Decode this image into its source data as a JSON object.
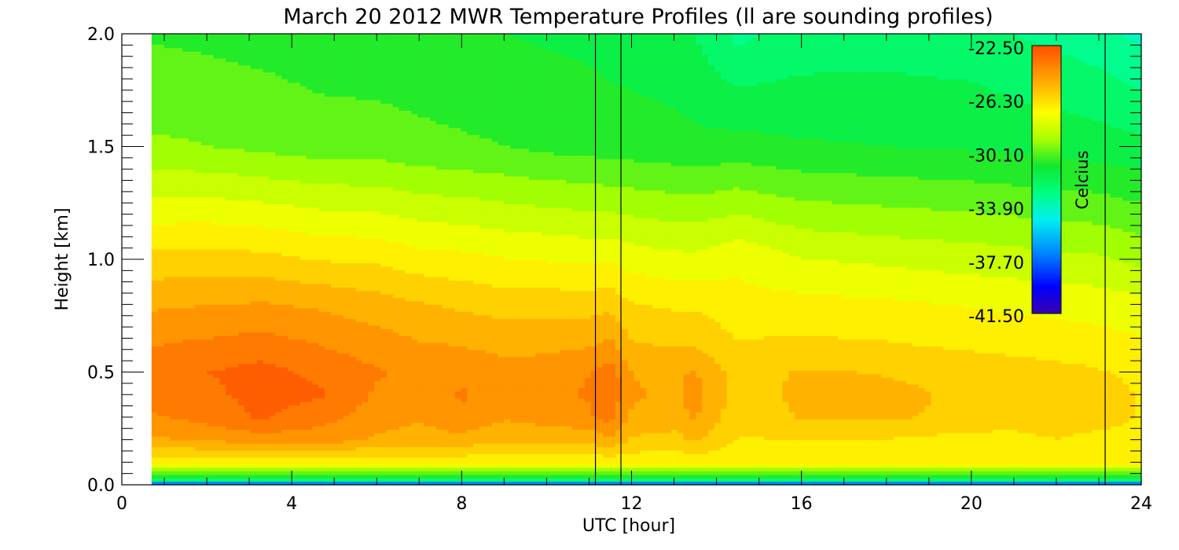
{
  "chart_data": {
    "type": "heatmap",
    "title": "March 20 2012 MWR Temperature Profiles (ll are sounding profiles)",
    "xlabel": "UTC [hour]",
    "ylabel": "Height [km]",
    "xlim": [
      0,
      24
    ],
    "ylim": [
      0,
      2
    ],
    "x_ticks": [
      "0",
      "4",
      "8",
      "12",
      "16",
      "20",
      "24"
    ],
    "x_tick_values": [
      0,
      4,
      8,
      12,
      16,
      20,
      24
    ],
    "y_ticks": [
      "0.0",
      "0.5",
      "1.0",
      "1.5",
      "2.0"
    ],
    "y_tick_values": [
      0,
      0.5,
      1.0,
      1.5,
      2.0
    ],
    "data_x_range": [
      0.7,
      24.0
    ],
    "sounding_times": [
      11.15,
      11.75,
      23.15
    ],
    "colorbar": {
      "label": "Celcius",
      "min": -41.5,
      "max": -22.5,
      "ticks": [
        "-22.50",
        "-26.30",
        "-30.10",
        "-33.90",
        "-37.70",
        "-41.50"
      ],
      "tick_values": [
        -22.5,
        -26.3,
        -30.1,
        -33.9,
        -37.7,
        -41.5
      ]
    },
    "x_samples": [
      0.7,
      2,
      3.3,
      4.7,
      6,
      7,
      8,
      9,
      10,
      11,
      11.5,
      12,
      13,
      13.5,
      14.5,
      16,
      18,
      20,
      21,
      22,
      23,
      24
    ],
    "y_samples": [
      0,
      0.02,
      0.05,
      0.1,
      0.2,
      0.3,
      0.4,
      0.5,
      0.6,
      0.8,
      1.0,
      1.5,
      2.0
    ],
    "temperature_grid": [
      [
        -40,
        -40,
        -40,
        -40,
        -40,
        -40,
        -40,
        -40,
        -40,
        -40,
        -40,
        -40,
        -40,
        -40,
        -40,
        -40,
        -40,
        -40,
        -40,
        -40,
        -40,
        -40
      ],
      [
        -33,
        -33,
        -33,
        -33,
        -33,
        -33,
        -33,
        -33,
        -33,
        -33,
        -33,
        -32.5,
        -32.5,
        -32.5,
        -32.5,
        -32.5,
        -32.5,
        -32.5,
        -32.5,
        -32.5,
        -32.5,
        -32.5
      ],
      [
        -30,
        -30,
        -30,
        -30,
        -30,
        -30,
        -30,
        -30,
        -30,
        -30,
        -30,
        -30,
        -30,
        -30,
        -30,
        -30,
        -30,
        -30,
        -30,
        -30,
        -30,
        -30
      ],
      [
        -27,
        -27,
        -27,
        -27,
        -27,
        -27,
        -27,
        -27,
        -27,
        -27,
        -27,
        -27,
        -27,
        -27,
        -27,
        -27,
        -27,
        -27,
        -27,
        -27,
        -27,
        -27
      ],
      [
        -25,
        -24.8,
        -24.5,
        -24.5,
        -25,
        -25.2,
        -25.2,
        -25.5,
        -25.5,
        -25.5,
        -25,
        -25.8,
        -26,
        -25.5,
        -26.5,
        -26.5,
        -26.5,
        -26.8,
        -26.8,
        -26.5,
        -26.8,
        -27
      ],
      [
        -24.2,
        -23.8,
        -23.2,
        -23.8,
        -24.5,
        -24.8,
        -24.2,
        -24.8,
        -24.5,
        -24.2,
        -23.8,
        -25,
        -25.2,
        -24.8,
        -26.2,
        -25.6,
        -25.6,
        -25.8,
        -26,
        -25.8,
        -26,
        -26.5
      ],
      [
        -23.8,
        -23.5,
        -23,
        -23.2,
        -24.2,
        -24.5,
        -24,
        -24.5,
        -24.3,
        -24,
        -23.5,
        -24.8,
        -25,
        -24.6,
        -26,
        -25.5,
        -25.5,
        -25.8,
        -26,
        -26,
        -26.2,
        -26.5
      ],
      [
        -23.6,
        -23.3,
        -23,
        -23.5,
        -24,
        -24.3,
        -24.2,
        -24.6,
        -24.4,
        -24.1,
        -23.6,
        -24.9,
        -25,
        -24.8,
        -26,
        -25.6,
        -25.7,
        -25.9,
        -26.1,
        -26.2,
        -26.4,
        -26.6
      ],
      [
        -24,
        -23.8,
        -23.6,
        -24,
        -24.4,
        -24.7,
        -24.8,
        -25,
        -25,
        -24.8,
        -24.5,
        -25.5,
        -25.6,
        -25.6,
        -26.3,
        -26.2,
        -26.3,
        -26.5,
        -26.6,
        -26.7,
        -26.8,
        -27
      ],
      [
        -25,
        -24.9,
        -24.8,
        -25,
        -25.3,
        -25.6,
        -25.8,
        -26,
        -26,
        -26,
        -25.9,
        -26.4,
        -26.6,
        -26.6,
        -27,
        -27,
        -27.1,
        -27.3,
        -27.4,
        -27.5,
        -27.6,
        -27.8
      ],
      [
        -26.2,
        -26.1,
        -26.2,
        -26.5,
        -26.6,
        -26.9,
        -27,
        -27.2,
        -27.3,
        -27.4,
        -27.4,
        -27.6,
        -27.8,
        -27.8,
        -27.4,
        -28,
        -28.2,
        -28.4,
        -28.5,
        -28.6,
        -28.7,
        -29
      ],
      [
        -29.5,
        -29.6,
        -29.8,
        -30,
        -30,
        -30.2,
        -30.3,
        -30.4,
        -30.6,
        -30.7,
        -30.8,
        -30.8,
        -30.9,
        -31,
        -30.9,
        -31.1,
        -31.2,
        -31.3,
        -31.4,
        -31.5,
        -31.6,
        -31.8
      ],
      [
        -30.5,
        -30.6,
        -30.7,
        -30.9,
        -31,
        -31,
        -31.1,
        -31.2,
        -31.3,
        -31.4,
        -31.5,
        -31.6,
        -31.8,
        -32,
        -33,
        -32.5,
        -32.4,
        -32.5,
        -32.8,
        -33,
        -33.3,
        -33.8
      ]
    ]
  }
}
